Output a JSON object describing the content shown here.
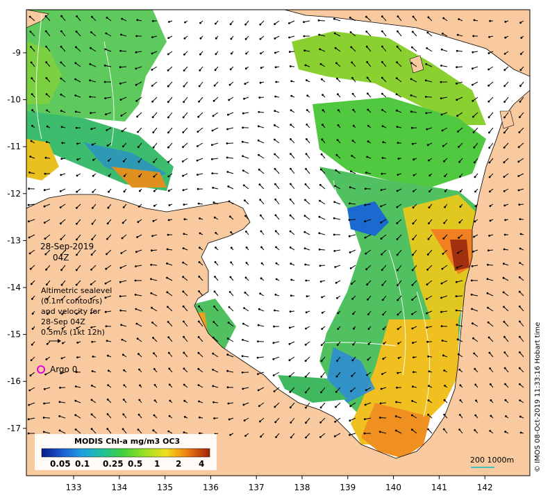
{
  "map": {
    "datetime": "28-Sep-2019",
    "hour": "04Z",
    "info_lines": [
      "Altimetric sealevel",
      "(0.1m contours)",
      "and velocity for",
      "28-Sep 04Z",
      "0.5m/s (1kt 12h)"
    ],
    "argo_label": "Argo 0",
    "legend_title": "MODIS Chl-a mg/m3 OC3",
    "legend_ticks": [
      "0.05",
      "0.1",
      "0.25",
      "0.5",
      "1",
      "2",
      "4"
    ],
    "scale_label": "200  1000m",
    "credit": "© IMOS 08-Oct-2019 11:33:16 Hobart time",
    "lon_ticks": [
      "133",
      "134",
      "135",
      "136",
      "137",
      "138",
      "139",
      "140",
      "141",
      "142"
    ],
    "lat_ticks": [
      "-9",
      "-10",
      "-11",
      "-12",
      "-13",
      "-14",
      "-15",
      "-16",
      "-17"
    ],
    "colors": {
      "land": "#f9c9a0",
      "ocean": "#ffffff",
      "argo": "#e000e0",
      "scale_bar": "#40c0c0"
    }
  }
}
